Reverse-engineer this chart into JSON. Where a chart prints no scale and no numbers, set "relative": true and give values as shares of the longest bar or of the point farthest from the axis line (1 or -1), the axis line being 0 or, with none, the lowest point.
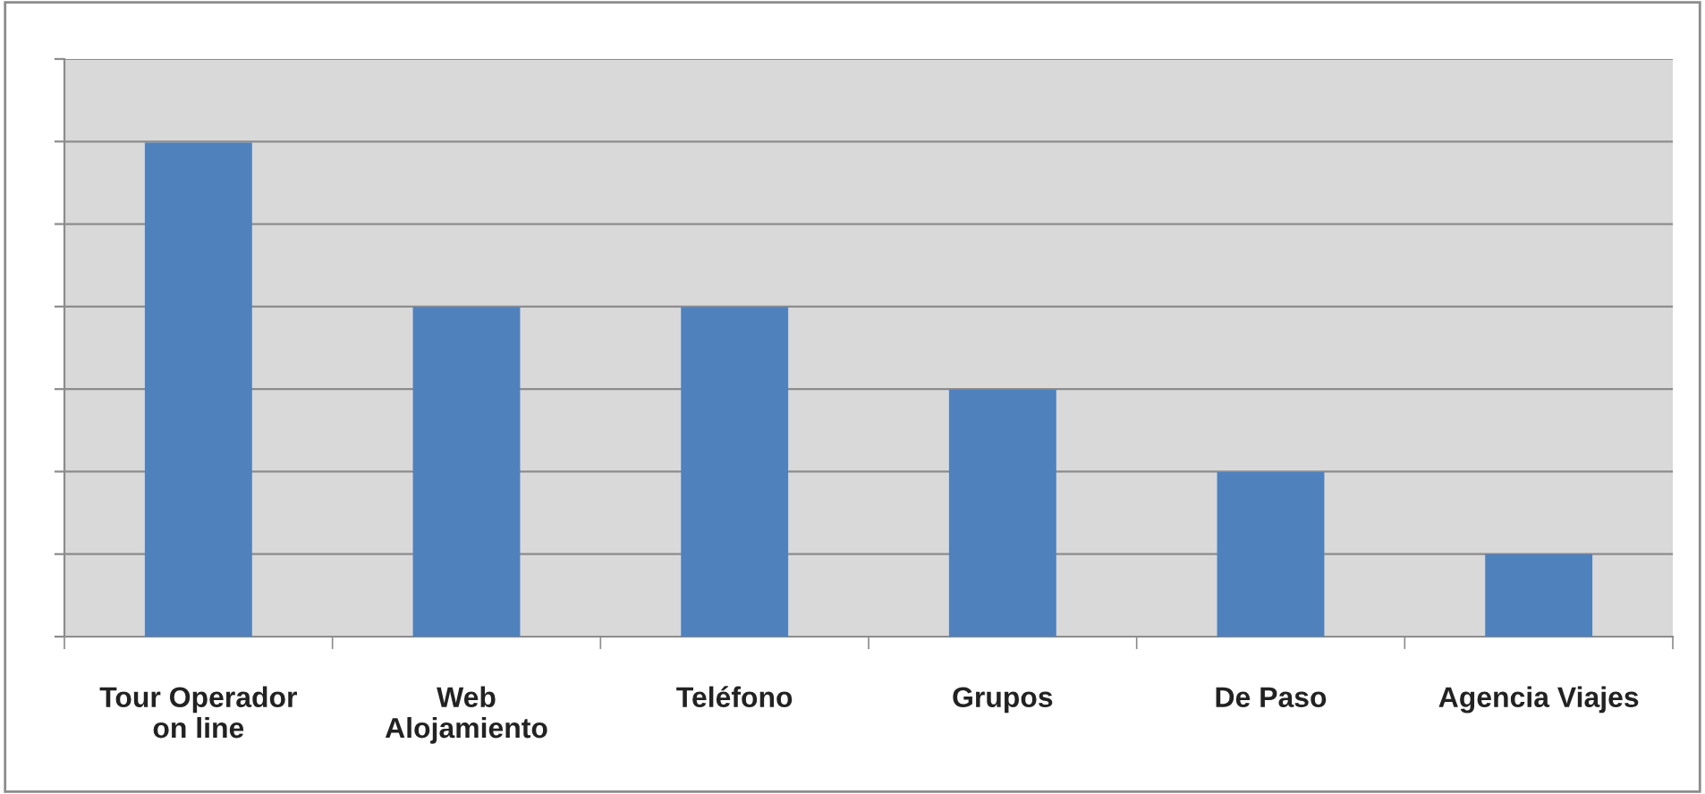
{
  "chart_data": {
    "type": "bar",
    "relative": true,
    "categories": [
      "Tour Operador\non line",
      "Web\nAlojamiento",
      "Teléfono",
      "Grupos",
      "De Paso",
      "Agencia Viajes"
    ],
    "values": [
      1,
      0.667,
      0.667,
      0.5,
      0.333,
      0.167
    ],
    "color": "#4f81bd",
    "grid": "y",
    "legend": false
  }
}
